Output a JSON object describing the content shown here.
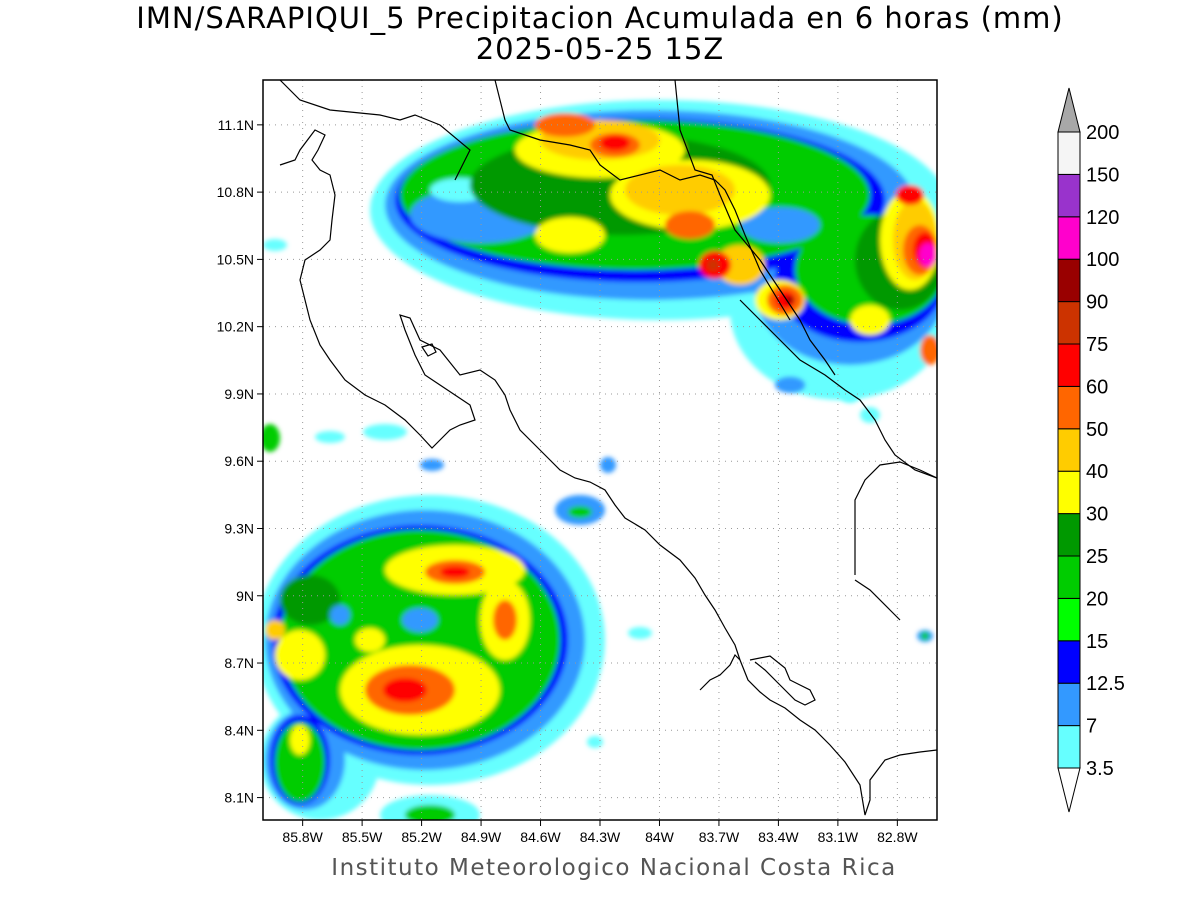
{
  "title": {
    "line1": "IMN/SARAPIQUI_5 Precipitacion Acumulada en 6 horas (mm)",
    "line2": "2025-05-25 15Z"
  },
  "credit": "Instituto Meteorologico Nacional Costa Rica",
  "map": {
    "lon_range": [
      -86.0,
      -82.6
    ],
    "lat_range": [
      8.0,
      11.3
    ],
    "lon_ticks": [
      {
        "value": -85.8,
        "label": "85.8W"
      },
      {
        "value": -85.5,
        "label": "85.5W"
      },
      {
        "value": -85.2,
        "label": "85.2W"
      },
      {
        "value": -84.9,
        "label": "84.9W"
      },
      {
        "value": -84.6,
        "label": "84.6W"
      },
      {
        "value": -84.3,
        "label": "84.3W"
      },
      {
        "value": -84.0,
        "label": "84W"
      },
      {
        "value": -83.7,
        "label": "83.7W"
      },
      {
        "value": -83.4,
        "label": "83.4W"
      },
      {
        "value": -83.1,
        "label": "83.1W"
      },
      {
        "value": -82.8,
        "label": "82.8W"
      }
    ],
    "lat_ticks": [
      {
        "value": 8.1,
        "label": "8.1N"
      },
      {
        "value": 8.4,
        "label": "8.4N"
      },
      {
        "value": 8.7,
        "label": "8.7N"
      },
      {
        "value": 9.0,
        "label": "9N"
      },
      {
        "value": 9.3,
        "label": "9.3N"
      },
      {
        "value": 9.6,
        "label": "9.6N"
      },
      {
        "value": 9.9,
        "label": "9.9N"
      },
      {
        "value": 10.2,
        "label": "10.2N"
      },
      {
        "value": 10.5,
        "label": "10.5N"
      },
      {
        "value": 10.8,
        "label": "10.8N"
      },
      {
        "value": 11.1,
        "label": "11.1N"
      }
    ],
    "grid": true
  },
  "colorbar": {
    "levels": [
      "3.5",
      "7",
      "12.5",
      "15",
      "20",
      "25",
      "30",
      "40",
      "50",
      "60",
      "75",
      "90",
      "100",
      "120",
      "150",
      "200"
    ],
    "colors": [
      "#66ffff",
      "#3399ff",
      "#0000ff",
      "#00ff00",
      "#00cc00",
      "#009900",
      "#ffff00",
      "#ffcc00",
      "#ff6600",
      "#ff0000",
      "#cc3300",
      "#990000",
      "#ff00cc",
      "#9933cc",
      "#f5f5f5"
    ],
    "over_color": "#a8a8a8",
    "under_color": "#ffffff"
  }
}
